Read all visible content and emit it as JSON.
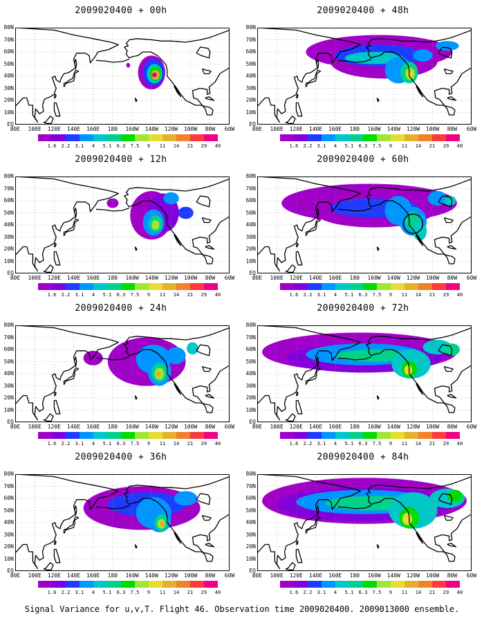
{
  "panels": [
    {
      "title": "2009020400 + 00h",
      "col": 0,
      "row": 0
    },
    {
      "title": "2009020400 + 48h",
      "col": 1,
      "row": 0
    },
    {
      "title": "2009020400 + 12h",
      "col": 0,
      "row": 1
    },
    {
      "title": "2009020400 + 60h",
      "col": 1,
      "row": 1
    },
    {
      "title": "2009020400 + 24h",
      "col": 0,
      "row": 2
    },
    {
      "title": "2009020400 + 72h",
      "col": 1,
      "row": 2
    },
    {
      "title": "2009020400 + 36h",
      "col": 0,
      "row": 3
    },
    {
      "title": "2009020400 + 84h",
      "col": 1,
      "row": 3
    }
  ],
  "lat_labels": [
    "80N",
    "70N",
    "60N",
    "50N",
    "40N",
    "30N",
    "20N",
    "10N",
    "EQ"
  ],
  "lon_labels": [
    "80E",
    "100E",
    "120E",
    "140E",
    "160E",
    "180",
    "160W",
    "140W",
    "120W",
    "100W",
    "80W",
    "60W"
  ],
  "colorbar": {
    "labels": [
      "1.6",
      "2.2",
      "3.1",
      "4",
      "5.1",
      "6.3",
      "7.5",
      "9",
      "11",
      "14",
      "21",
      "29",
      "40"
    ],
    "colors": [
      "#a000c8",
      "#8200dc",
      "#1e3cff",
      "#0096ff",
      "#00c8c8",
      "#00d28c",
      "#00dc00",
      "#a0e632",
      "#e6dc32",
      "#e6af2d",
      "#f08228",
      "#fa3c3c",
      "#f00082"
    ]
  },
  "caption": "Signal Variance for u,v,T. Flight 46. Observation time 2009020400. 2009013000 ensemble."
}
